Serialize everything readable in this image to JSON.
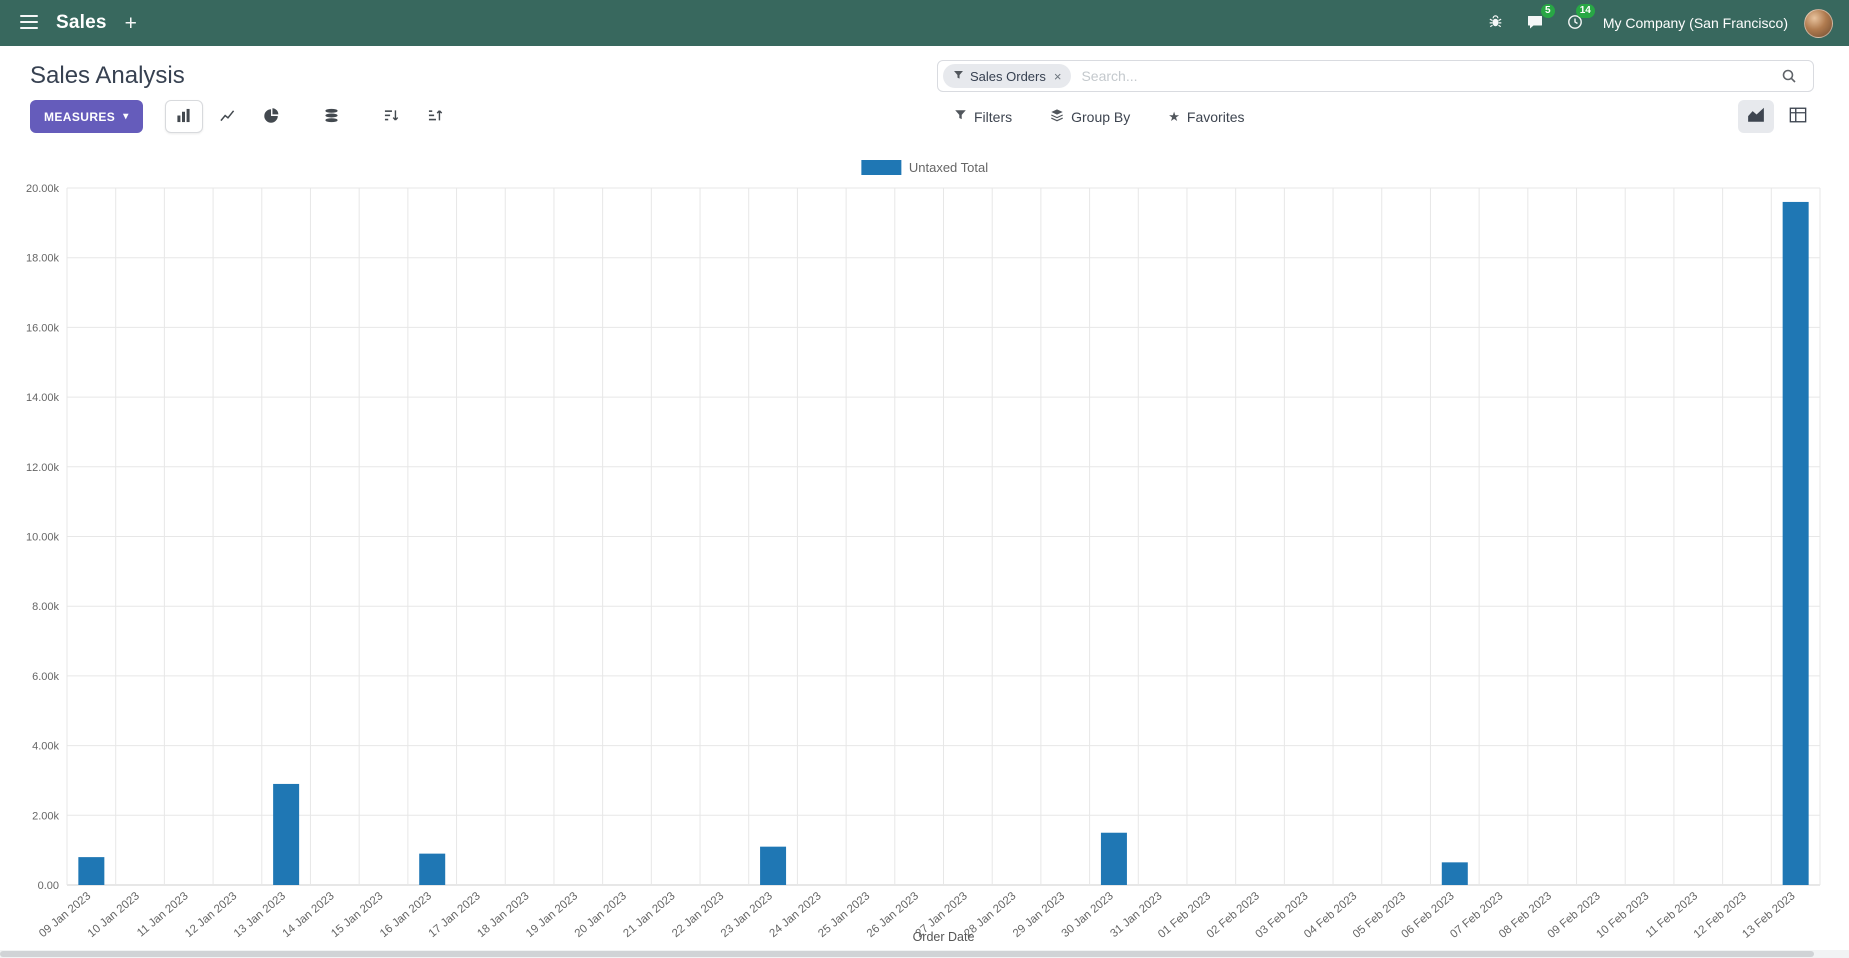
{
  "navbar": {
    "app_name": "Sales",
    "plus": "+",
    "messages_badge": "5",
    "activities_badge": "14",
    "company": "My Company (San Francisco)"
  },
  "page": {
    "title": "Sales Analysis"
  },
  "search": {
    "facet_label": "Sales Orders",
    "remove": "×",
    "placeholder": "Search..."
  },
  "toolbar": {
    "measures_label": "MEASURES",
    "measures_caret": "▾",
    "filters_label": "Filters",
    "group_by_label": "Group By",
    "favorites_label": "Favorites",
    "favorites_star": "★"
  },
  "colors": {
    "navbar_bg": "#38685e",
    "badge_green": "#28a745",
    "primary_button": "#655CBB",
    "bar_color": "#1F77B4"
  },
  "chart_data": {
    "type": "bar",
    "title": "",
    "xlabel": "Order Date",
    "ylabel": "",
    "ylim": [
      0,
      20000
    ],
    "grid": true,
    "legend_position": "top",
    "y_tick_labels": [
      "0.00",
      "2.00k",
      "4.00k",
      "6.00k",
      "8.00k",
      "10.00k",
      "12.00k",
      "14.00k",
      "16.00k",
      "18.00k",
      "20.00k"
    ],
    "categories": [
      "09 Jan 2023",
      "10 Jan 2023",
      "11 Jan 2023",
      "12 Jan 2023",
      "13 Jan 2023",
      "14 Jan 2023",
      "15 Jan 2023",
      "16 Jan 2023",
      "17 Jan 2023",
      "18 Jan 2023",
      "19 Jan 2023",
      "20 Jan 2023",
      "21 Jan 2023",
      "22 Jan 2023",
      "23 Jan 2023",
      "24 Jan 2023",
      "25 Jan 2023",
      "26 Jan 2023",
      "27 Jan 2023",
      "28 Jan 2023",
      "29 Jan 2023",
      "30 Jan 2023",
      "31 Jan 2023",
      "01 Feb 2023",
      "02 Feb 2023",
      "03 Feb 2023",
      "04 Feb 2023",
      "05 Feb 2023",
      "06 Feb 2023",
      "07 Feb 2023",
      "08 Feb 2023",
      "09 Feb 2023",
      "10 Feb 2023",
      "11 Feb 2023",
      "12 Feb 2023",
      "13 Feb 2023"
    ],
    "series": [
      {
        "name": "Untaxed Total",
        "color": "#1F77B4",
        "values": [
          800,
          0,
          0,
          0,
          2900,
          0,
          0,
          900,
          0,
          0,
          0,
          0,
          0,
          0,
          1100,
          0,
          0,
          0,
          0,
          0,
          0,
          1500,
          0,
          0,
          0,
          0,
          0,
          0,
          650,
          0,
          0,
          0,
          0,
          0,
          0,
          19600
        ]
      }
    ]
  }
}
